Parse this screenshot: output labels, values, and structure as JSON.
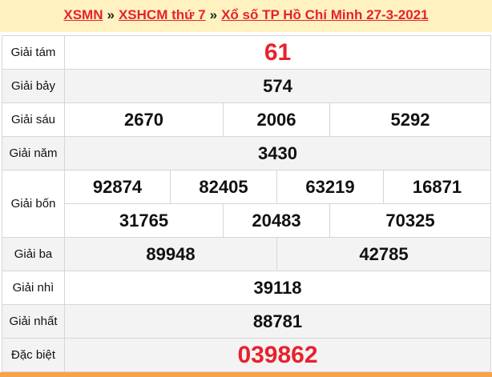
{
  "breadcrumb": {
    "items": [
      "XSMN",
      "XSHCM thứ 7",
      "Xổ số TP Hồ Chí Minh 27-3-2021"
    ],
    "separator": "»"
  },
  "results": {
    "g8": {
      "label": "Giải tám",
      "values": [
        "61"
      ]
    },
    "g7": {
      "label": "Giải bảy",
      "values": [
        "574"
      ]
    },
    "g6": {
      "label": "Giải sáu",
      "values": [
        "2670",
        "2006",
        "5292"
      ]
    },
    "g5": {
      "label": "Giải năm",
      "values": [
        "3430"
      ]
    },
    "g4": {
      "label": "Giải bốn",
      "values": [
        "92874",
        "82405",
        "63219",
        "16871",
        "31765",
        "20483",
        "70325"
      ]
    },
    "g3": {
      "label": "Giải ba",
      "values": [
        "89948",
        "42785"
      ]
    },
    "g2": {
      "label": "Giải nhì",
      "values": [
        "39118"
      ]
    },
    "g1": {
      "label": "Giải nhất",
      "values": [
        "88781"
      ]
    },
    "db": {
      "label": "Đặc biệt",
      "values": [
        "039862"
      ]
    }
  },
  "colors": {
    "accent": "#e8212e",
    "header_bg": "#fff2c0",
    "bottom_bar": "#f7a24a"
  }
}
